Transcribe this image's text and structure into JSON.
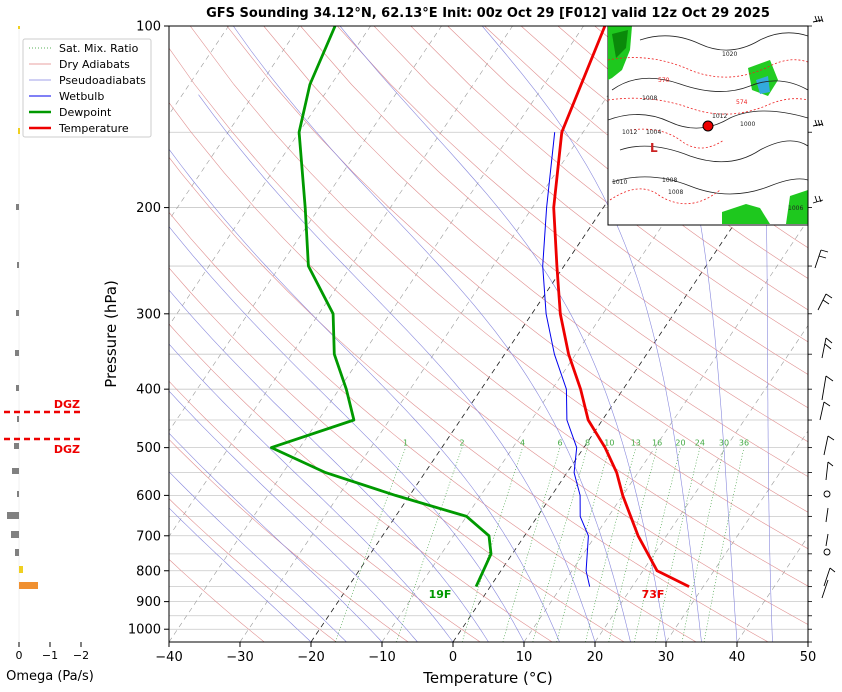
{
  "chart_data": {
    "type": "line",
    "title": "GFS Sounding 34.12°N, 62.13°E Init: 00z Oct 29 [F012] valid 12z Oct 29 2025",
    "xlabel": "Temperature (°C)",
    "ylabel": "Pressure (hPa)",
    "xlim": [
      -40,
      50
    ],
    "ylim": [
      1050,
      100
    ],
    "skew": 35,
    "x_ticks": [
      "−40",
      "−30",
      "−20",
      "−10",
      "0",
      "10",
      "20",
      "30",
      "40",
      "50"
    ],
    "y_ticks": [
      "100",
      "200",
      "300",
      "400",
      "500",
      "600",
      "700",
      "800",
      "900",
      "1000"
    ],
    "legend": [
      "Sat. Mix. Ratio",
      "Dry Adiabats",
      "Pseudoadiabats",
      "Wetbulb",
      "Dewpoint",
      "Temperature"
    ],
    "legend_position": "top-left",
    "mixing_ratio_labels": [
      "1",
      "2",
      "4",
      "6",
      "8",
      "10",
      "13",
      "16",
      "20",
      "24",
      "30",
      "36"
    ],
    "series": [
      {
        "name": "Temperature",
        "color": "#ee0000",
        "points": [
          [
            28,
            850
          ],
          [
            22,
            800
          ],
          [
            16,
            700
          ],
          [
            10,
            600
          ],
          [
            7,
            550
          ],
          [
            3,
            500
          ],
          [
            -2,
            450
          ],
          [
            -6,
            400
          ],
          [
            -11,
            350
          ],
          [
            -16,
            300
          ],
          [
            -21,
            250
          ],
          [
            -27,
            200
          ],
          [
            -33,
            150
          ],
          [
            -37,
            100
          ]
        ]
      },
      {
        "name": "Dewpoint",
        "color": "#009900",
        "points": [
          [
            -2,
            850
          ],
          [
            -3,
            750
          ],
          [
            -5,
            700
          ],
          [
            -10,
            650
          ],
          [
            -22,
            600
          ],
          [
            -34,
            550
          ],
          [
            -44,
            500
          ],
          [
            -35,
            450
          ],
          [
            -39,
            400
          ],
          [
            -44,
            350
          ],
          [
            -48,
            300
          ],
          [
            -56,
            250
          ],
          [
            -62,
            200
          ],
          [
            -70,
            150
          ],
          [
            -73,
            125
          ],
          [
            -75,
            100
          ]
        ]
      },
      {
        "name": "Wetbulb",
        "color": "#0000ee",
        "points": [
          [
            14,
            850
          ],
          [
            12,
            800
          ],
          [
            9,
            700
          ],
          [
            6,
            650
          ],
          [
            4,
            600
          ],
          [
            1,
            550
          ],
          [
            -1,
            500
          ],
          [
            -5,
            450
          ],
          [
            -8,
            400
          ],
          [
            -13,
            350
          ],
          [
            -18,
            300
          ],
          [
            -23,
            250
          ],
          [
            -28,
            200
          ],
          [
            -34,
            150
          ]
        ]
      }
    ],
    "surface_labels": {
      "temperature": "73F",
      "dewpoint": "19F"
    },
    "omega": {
      "xlabel": "Omega (Pa/s)",
      "x_ticks": [
        "0",
        "−1",
        "−2"
      ],
      "dgz_label": "DGZ",
      "dgz_levels": [
        440,
        490
      ]
    },
    "wind_barbs": "right"
  },
  "inset_map": {
    "pressure_labels": [
      "1020",
      "1012",
      "1008",
      "1004",
      "1010",
      "1008",
      "1000",
      "1006",
      "1008",
      "1012"
    ],
    "thickness_labels": [
      "570",
      "574"
    ],
    "low_label": "L"
  }
}
